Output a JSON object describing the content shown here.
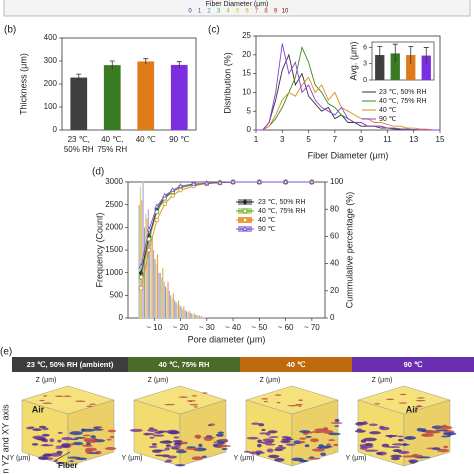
{
  "colorbar": {
    "label": "Fiber Diameter (μm)",
    "ticks": [
      "0",
      "1",
      "2",
      "3",
      "4",
      "5",
      "6",
      "7",
      "8",
      "9",
      "10"
    ],
    "colors": [
      "#1b1b8f",
      "#2a4fd6",
      "#1f9ad6",
      "#2cb36b",
      "#7cc23a",
      "#c9c92a",
      "#e0a020",
      "#e06a1a",
      "#d0301a",
      "#a01010",
      "#600808"
    ]
  },
  "chart_data": [
    {
      "type": "bar",
      "panel_label": "(b)",
      "ylabel": "Thickness (μm)",
      "categories": [
        [
          "23 ℃,",
          "50% RH"
        ],
        [
          "40 ℃,",
          "75% RH"
        ],
        [
          "40 ℃"
        ],
        [
          "90 ℃"
        ]
      ],
      "values": [
        228,
        282,
        298,
        283
      ],
      "errors": [
        15,
        18,
        12,
        14
      ],
      "colors": [
        "#404040",
        "#3a7a22",
        "#e07b1a",
        "#7b2fe0"
      ],
      "ylim": [
        0,
        400
      ],
      "yticks": [
        0,
        100,
        200,
        300,
        400
      ]
    },
    {
      "type": "line",
      "panel_label": "(c)",
      "xlabel": "Fiber Diameter (μm)",
      "ylabel": "Distribution (%)",
      "x": [
        1,
        1.5,
        2,
        2.5,
        3,
        3.5,
        4,
        4.5,
        5,
        5.5,
        6,
        6.5,
        7,
        7.5,
        8,
        8.5,
        9,
        9.5,
        10,
        10.5,
        11,
        11.5,
        12,
        12.5,
        13,
        13.5,
        14,
        14.5,
        15
      ],
      "series": [
        {
          "name": "23 ℃, 50% RH",
          "color": "#333333",
          "values": [
            0,
            0,
            2,
            8,
            16,
            20,
            12,
            15,
            9,
            7,
            5,
            6,
            3,
            4,
            2,
            2,
            1,
            1,
            1,
            0.5,
            0.5,
            0.3,
            0.2,
            0.2,
            0.1,
            0,
            0,
            0,
            0
          ]
        },
        {
          "name": "40 ℃, 75% RH",
          "color": "#3a8a22",
          "values": [
            0,
            0,
            1,
            3,
            6,
            10,
            14,
            22,
            18,
            12,
            10,
            7,
            6,
            4,
            3,
            2,
            2,
            1,
            1,
            1,
            0.5,
            0.5,
            0.3,
            0.2,
            0.1,
            0,
            0,
            0,
            0
          ]
        },
        {
          "name": "40 ℃",
          "color": "#e08a1e",
          "values": [
            0,
            0,
            1,
            4,
            8,
            10,
            9,
            12,
            14,
            10,
            12,
            8,
            10,
            6,
            5,
            4,
            3,
            3,
            2,
            2,
            1.5,
            1,
            1,
            0.5,
            0.5,
            0.3,
            0.2,
            0,
            0
          ]
        },
        {
          "name": "90 ℃",
          "color": "#8b3fd9",
          "values": [
            0,
            0,
            2,
            10,
            23,
            15,
            18,
            10,
            12,
            8,
            6,
            5,
            4,
            6,
            3,
            2,
            2,
            1,
            1,
            1,
            0.5,
            0.5,
            0.3,
            0.2,
            0.1,
            0,
            0,
            0,
            0
          ]
        }
      ],
      "xlim": [
        1,
        15
      ],
      "xticks": [
        1,
        3,
        5,
        7,
        9,
        11,
        13,
        15
      ],
      "ylim": [
        0,
        25
      ],
      "yticks": [
        0,
        5,
        10,
        15,
        20,
        25
      ],
      "inset": {
        "type": "bar",
        "ylabel": "Avg. (μm)",
        "values": [
          4.6,
          4.9,
          4.6,
          4.5
        ],
        "errors": [
          1.6,
          1.7,
          1.6,
          1.5
        ],
        "colors": [
          "#404040",
          "#3a7a22",
          "#e07b1a",
          "#7b2fe0"
        ],
        "ylim": [
          0,
          7
        ],
        "yticks": [
          0,
          3,
          6
        ]
      }
    },
    {
      "type": "bar_line",
      "panel_label": "(d)",
      "xlabel": "Pore diameter (μm)",
      "ylabel": "Frequency (Count)",
      "y2label": "Cummulative percentage (%)",
      "x": [
        5,
        7,
        9,
        11,
        13,
        15,
        17,
        19,
        21,
        23,
        25,
        27,
        29
      ],
      "bin_width": 2,
      "series": [
        {
          "color": "#9a9a9a",
          "values": [
            2500,
            2000,
            1700,
            1300,
            1000,
            700,
            500,
            350,
            250,
            150,
            100,
            60,
            30
          ]
        },
        {
          "color": "#b7dc8c",
          "values": [
            2900,
            2300,
            1900,
            1200,
            900,
            650,
            450,
            300,
            200,
            130,
            80,
            50,
            20
          ]
        },
        {
          "color": "#f0a040",
          "values": [
            2600,
            2200,
            1800,
            1400,
            1100,
            800,
            550,
            380,
            260,
            160,
            100,
            60,
            30
          ]
        },
        {
          "color": "#b79ce0",
          "values": [
            3000,
            2400,
            1500,
            1000,
            800,
            600,
            400,
            280,
            180,
            120,
            70,
            40,
            20
          ]
        },
        {
          "name": "23 ℃, 50% RH",
          "axis": "y2",
          "color": "#222222",
          "marker": "diamond",
          "x": [
            5,
            8,
            11,
            14,
            17,
            20,
            25,
            30,
            35,
            40,
            50,
            60,
            70
          ],
          "values": [
            33,
            60,
            80,
            89,
            93,
            96,
            98,
            99,
            99.5,
            100,
            100,
            100,
            100
          ]
        },
        {
          "name": "40 ℃, 75% RH",
          "axis": "y2",
          "color": "#5aa02a",
          "marker": "square",
          "x": [
            5,
            8,
            11,
            14,
            17,
            20,
            25,
            30,
            35,
            40,
            50,
            60,
            70
          ],
          "values": [
            30,
            58,
            78,
            88,
            93,
            96,
            98,
            99,
            99.5,
            100,
            100,
            100,
            100
          ]
        },
        {
          "name": "40 ℃",
          "axis": "y2",
          "color": "#e08a1e",
          "marker": "circle",
          "x": [
            5,
            8,
            11,
            14,
            17,
            20,
            25,
            30,
            35,
            40,
            50,
            60,
            70
          ],
          "values": [
            22,
            50,
            72,
            84,
            90,
            94,
            97,
            99,
            99.5,
            100,
            100,
            100,
            100
          ]
        },
        {
          "name": "90 ℃",
          "axis": "y2",
          "color": "#7b4fd0",
          "marker": "triangle",
          "x": [
            5,
            8,
            11,
            14,
            17,
            20,
            25,
            30,
            35,
            40,
            50,
            60,
            70
          ],
          "values": [
            38,
            65,
            82,
            90,
            94,
            97,
            98.5,
            99,
            99.5,
            100,
            100,
            100,
            100
          ]
        }
      ],
      "xlim": [
        0,
        75
      ],
      "xticks": [
        {
          "value": 10,
          "label": "~ 10"
        },
        {
          "value": 20,
          "label": "~ 20"
        },
        {
          "value": 30,
          "label": "~ 30"
        },
        {
          "value": 40,
          "label": "~ 40"
        },
        {
          "value": 50,
          "label": "~ 50"
        },
        {
          "value": 60,
          "label": "~ 60"
        },
        {
          "value": 70,
          "label": "~ 70"
        }
      ],
      "ylim": [
        0,
        3000
      ],
      "yticks": [
        0,
        500,
        1000,
        1500,
        2000,
        2500,
        3000
      ],
      "y2lim": [
        0,
        100
      ],
      "y2ticks": [
        0,
        20,
        40,
        60,
        80,
        100
      ]
    }
  ],
  "panel_e": {
    "panel_label": "(e)",
    "side_label": "in YZ and XY axis",
    "fiber": "Fiber",
    "headers": [
      {
        "text": "23 ℃, 50% RH (ambient)",
        "color": "#3d3d3d"
      },
      {
        "text": "40 ℃, 75% RH",
        "color": "#4a6b2a"
      },
      {
        "text": "40 ℃",
        "color": "#c06a10"
      },
      {
        "text": "90 ℃",
        "color": "#6a2fb0"
      }
    ],
    "cubes": [
      {
        "z": "Z (μm)",
        "y": "Y (μm)",
        "air": "Air"
      },
      {
        "z": "Z (μm)",
        "y": "Y (μm)"
      },
      {
        "z": "Z (μm)",
        "y": "Y (μm)"
      },
      {
        "z": "Z (μm)",
        "y": "Y (μm)",
        "air": "Air"
      }
    ]
  }
}
